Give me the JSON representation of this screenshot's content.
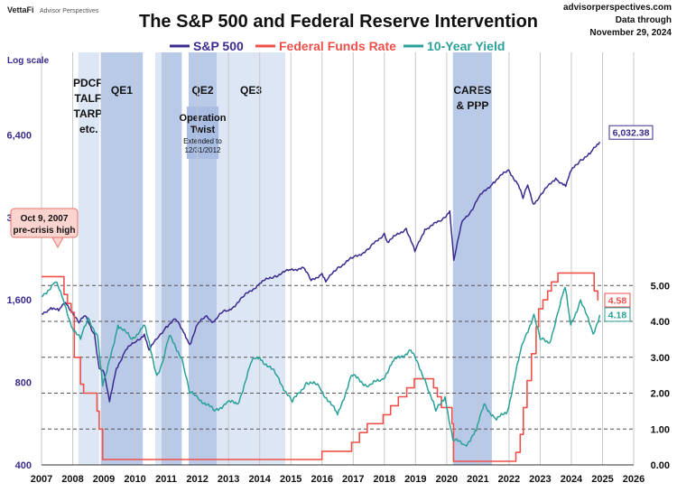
{
  "header": {
    "brand_name": "VettaFi",
    "brand_sub": "Advisor Perspectives",
    "site": "advisorperspectives.com",
    "date_line1": "Data through",
    "date_line2": "November 29, 2024"
  },
  "chart_data": {
    "type": "line",
    "title": "The S&P 500 and Federal Reserve Intervention",
    "left_axis_label": "Log scale",
    "left_axis": {
      "scale": "log",
      "range": [
        400,
        12800
      ],
      "ticks": [
        400,
        800,
        1600,
        3200,
        6400
      ],
      "tick_labels": [
        "400",
        "800",
        "1,600",
        "3,200",
        "6,400"
      ]
    },
    "right_axis": {
      "range": [
        0,
        11.5
      ],
      "ticks": [
        0,
        1,
        2,
        3,
        4,
        5
      ],
      "tick_labels": [
        "0.00",
        "1.00",
        "2.00",
        "3.00",
        "4.00",
        "5.00"
      ]
    },
    "x_axis": {
      "range": [
        2007,
        2026
      ],
      "tick_labels": [
        "2007",
        "2008",
        "2009",
        "2010",
        "2011",
        "2012",
        "2013",
        "2014",
        "2015",
        "2016",
        "2017",
        "2018",
        "2019",
        "2020",
        "2021",
        "2022",
        "2023",
        "2024",
        "2025",
        "2026"
      ]
    },
    "grid": "vertical at years, dashed horizontal on right axis",
    "legend": {
      "placement": "top-center",
      "items": [
        {
          "label": "S&P 500",
          "color": "#3b2a8f"
        },
        {
          "label": "Federal Funds Rate",
          "color": "#f0504a"
        },
        {
          "label": "10-Year Yield",
          "color": "#2aa198"
        }
      ]
    },
    "series": [
      {
        "name": "S&P 500",
        "axis": "left",
        "color": "#3b2a8f",
        "points": [
          [
            2007.0,
            1420
          ],
          [
            2007.3,
            1500
          ],
          [
            2007.55,
            1460
          ],
          [
            2007.77,
            1565
          ],
          [
            2008.0,
            1440
          ],
          [
            2008.2,
            1320
          ],
          [
            2008.4,
            1400
          ],
          [
            2008.7,
            1200
          ],
          [
            2008.85,
            900
          ],
          [
            2009.0,
            870
          ],
          [
            2009.18,
            680
          ],
          [
            2009.4,
            900
          ],
          [
            2009.7,
            1050
          ],
          [
            2010.0,
            1120
          ],
          [
            2010.3,
            1200
          ],
          [
            2010.45,
            1050
          ],
          [
            2010.7,
            1150
          ],
          [
            2011.0,
            1280
          ],
          [
            2011.3,
            1360
          ],
          [
            2011.6,
            1200
          ],
          [
            2011.76,
            1100
          ],
          [
            2012.0,
            1300
          ],
          [
            2012.3,
            1400
          ],
          [
            2012.5,
            1330
          ],
          [
            2012.8,
            1440
          ],
          [
            2013.0,
            1460
          ],
          [
            2013.5,
            1650
          ],
          [
            2014.0,
            1840
          ],
          [
            2014.5,
            1960
          ],
          [
            2015.0,
            2060
          ],
          [
            2015.4,
            2100
          ],
          [
            2015.65,
            1880
          ],
          [
            2016.0,
            2000
          ],
          [
            2016.12,
            1860
          ],
          [
            2016.5,
            2100
          ],
          [
            2017.0,
            2280
          ],
          [
            2017.5,
            2450
          ],
          [
            2018.0,
            2800
          ],
          [
            2018.1,
            2600
          ],
          [
            2018.7,
            2920
          ],
          [
            2018.98,
            2400
          ],
          [
            2019.3,
            2900
          ],
          [
            2019.8,
            3100
          ],
          [
            2020.1,
            3380
          ],
          [
            2020.23,
            2230
          ],
          [
            2020.5,
            3100
          ],
          [
            2020.8,
            3400
          ],
          [
            2021.0,
            3750
          ],
          [
            2021.5,
            4300
          ],
          [
            2021.99,
            4770
          ],
          [
            2022.3,
            4200
          ],
          [
            2022.45,
            3750
          ],
          [
            2022.6,
            4200
          ],
          [
            2022.78,
            3580
          ],
          [
            2023.0,
            3850
          ],
          [
            2023.5,
            4450
          ],
          [
            2023.82,
            4150
          ],
          [
            2024.0,
            4750
          ],
          [
            2024.3,
            5200
          ],
          [
            2024.6,
            5450
          ],
          [
            2024.91,
            6032.38
          ]
        ]
      },
      {
        "name": "Federal Funds Rate",
        "axis": "right",
        "color": "#f0504a",
        "points": [
          [
            2007.0,
            5.25
          ],
          [
            2007.7,
            5.25
          ],
          [
            2007.72,
            4.75
          ],
          [
            2007.83,
            4.5
          ],
          [
            2007.95,
            4.25
          ],
          [
            2008.05,
            3.0
          ],
          [
            2008.25,
            2.25
          ],
          [
            2008.35,
            2.0
          ],
          [
            2008.78,
            1.5
          ],
          [
            2008.85,
            1.0
          ],
          [
            2008.96,
            0.15
          ],
          [
            2015.95,
            0.15
          ],
          [
            2016.0,
            0.38
          ],
          [
            2016.95,
            0.63
          ],
          [
            2017.2,
            0.9
          ],
          [
            2017.45,
            1.15
          ],
          [
            2017.96,
            1.4
          ],
          [
            2018.2,
            1.65
          ],
          [
            2018.45,
            1.9
          ],
          [
            2018.72,
            2.15
          ],
          [
            2018.96,
            2.4
          ],
          [
            2019.58,
            2.15
          ],
          [
            2019.7,
            1.9
          ],
          [
            2019.83,
            1.6
          ],
          [
            2020.17,
            1.15
          ],
          [
            2020.22,
            0.1
          ],
          [
            2022.2,
            0.1
          ],
          [
            2022.22,
            0.35
          ],
          [
            2022.36,
            0.85
          ],
          [
            2022.46,
            1.6
          ],
          [
            2022.58,
            2.35
          ],
          [
            2022.72,
            3.1
          ],
          [
            2022.87,
            3.85
          ],
          [
            2022.95,
            4.35
          ],
          [
            2023.09,
            4.6
          ],
          [
            2023.24,
            4.85
          ],
          [
            2023.36,
            5.1
          ],
          [
            2023.57,
            5.35
          ],
          [
            2024.72,
            5.35
          ],
          [
            2024.73,
            4.85
          ],
          [
            2024.85,
            4.58
          ]
        ]
      },
      {
        "name": "10-Year Yield",
        "axis": "right",
        "color": "#2aa198",
        "points": [
          [
            2007.0,
            4.7
          ],
          [
            2007.45,
            5.1
          ],
          [
            2007.7,
            4.6
          ],
          [
            2008.0,
            3.8
          ],
          [
            2008.25,
            3.5
          ],
          [
            2008.5,
            4.1
          ],
          [
            2008.8,
            3.6
          ],
          [
            2008.96,
            2.2
          ],
          [
            2009.1,
            2.6
          ],
          [
            2009.45,
            3.9
          ],
          [
            2009.9,
            3.5
          ],
          [
            2010.3,
            3.9
          ],
          [
            2010.7,
            2.5
          ],
          [
            2010.9,
            2.9
          ],
          [
            2011.1,
            3.6
          ],
          [
            2011.5,
            3.0
          ],
          [
            2011.75,
            2.0
          ],
          [
            2012.0,
            1.9
          ],
          [
            2012.55,
            1.5
          ],
          [
            2012.95,
            1.75
          ],
          [
            2013.3,
            1.7
          ],
          [
            2013.75,
            2.9
          ],
          [
            2014.0,
            3.0
          ],
          [
            2014.5,
            2.55
          ],
          [
            2015.05,
            1.75
          ],
          [
            2015.5,
            2.3
          ],
          [
            2015.9,
            2.2
          ],
          [
            2016.5,
            1.4
          ],
          [
            2016.95,
            2.5
          ],
          [
            2017.5,
            2.2
          ],
          [
            2017.95,
            2.4
          ],
          [
            2018.3,
            2.9
          ],
          [
            2018.85,
            3.2
          ],
          [
            2019.3,
            2.4
          ],
          [
            2019.65,
            1.5
          ],
          [
            2019.95,
            1.9
          ],
          [
            2020.2,
            0.7
          ],
          [
            2020.6,
            0.55
          ],
          [
            2020.95,
            0.95
          ],
          [
            2021.2,
            1.7
          ],
          [
            2021.6,
            1.25
          ],
          [
            2021.95,
            1.5
          ],
          [
            2022.3,
            2.9
          ],
          [
            2022.45,
            3.4
          ],
          [
            2022.8,
            4.2
          ],
          [
            2023.0,
            3.5
          ],
          [
            2023.3,
            3.4
          ],
          [
            2023.55,
            4.2
          ],
          [
            2023.8,
            4.95
          ],
          [
            2023.98,
            3.9
          ],
          [
            2024.3,
            4.6
          ],
          [
            2024.7,
            3.65
          ],
          [
            2024.91,
            4.18
          ]
        ]
      }
    ],
    "value_labels": [
      {
        "text": "6,032.38",
        "color": "#3b2a8f",
        "series": "S&P 500"
      },
      {
        "text": "4.58",
        "color": "#f0504a",
        "series": "Federal Funds Rate"
      },
      {
        "text": "4.18",
        "color": "#2aa198",
        "series": "10-Year Yield"
      }
    ],
    "shaded_periods": [
      {
        "start": 2008.18,
        "end": 2008.85,
        "label_lines": [
          "PDCF,",
          "TALF,",
          "TARP,",
          "etc."
        ],
        "shade": "light"
      },
      {
        "start": 2008.9,
        "end": 2010.25,
        "label_lines": [
          "QE1"
        ],
        "shade": "medium"
      },
      {
        "start": 2010.65,
        "end": 2010.85,
        "label_lines": [],
        "shade": "light"
      },
      {
        "start": 2010.85,
        "end": 2011.5,
        "label_lines": [],
        "shade": "medium"
      },
      {
        "start": 2011.72,
        "end": 2012.62,
        "label_lines": [
          "QE2"
        ],
        "shade": "medium"
      },
      {
        "start": 2012.62,
        "end": 2014.82,
        "label_lines": [
          "QE3"
        ],
        "shade": "light"
      },
      {
        "start": 2020.2,
        "end": 2021.45,
        "label_lines": [
          "CARES",
          "& PPP"
        ],
        "shade": "medium"
      }
    ],
    "annotations": {
      "operation_twist": {
        "lines": [
          "Operation",
          "Twist"
        ],
        "sub_lines": [
          "Extended to",
          "12/31/2012"
        ]
      },
      "pre_crisis": {
        "lines": [
          "Oct 9, 2007",
          "pre-crisis high"
        ]
      }
    }
  }
}
